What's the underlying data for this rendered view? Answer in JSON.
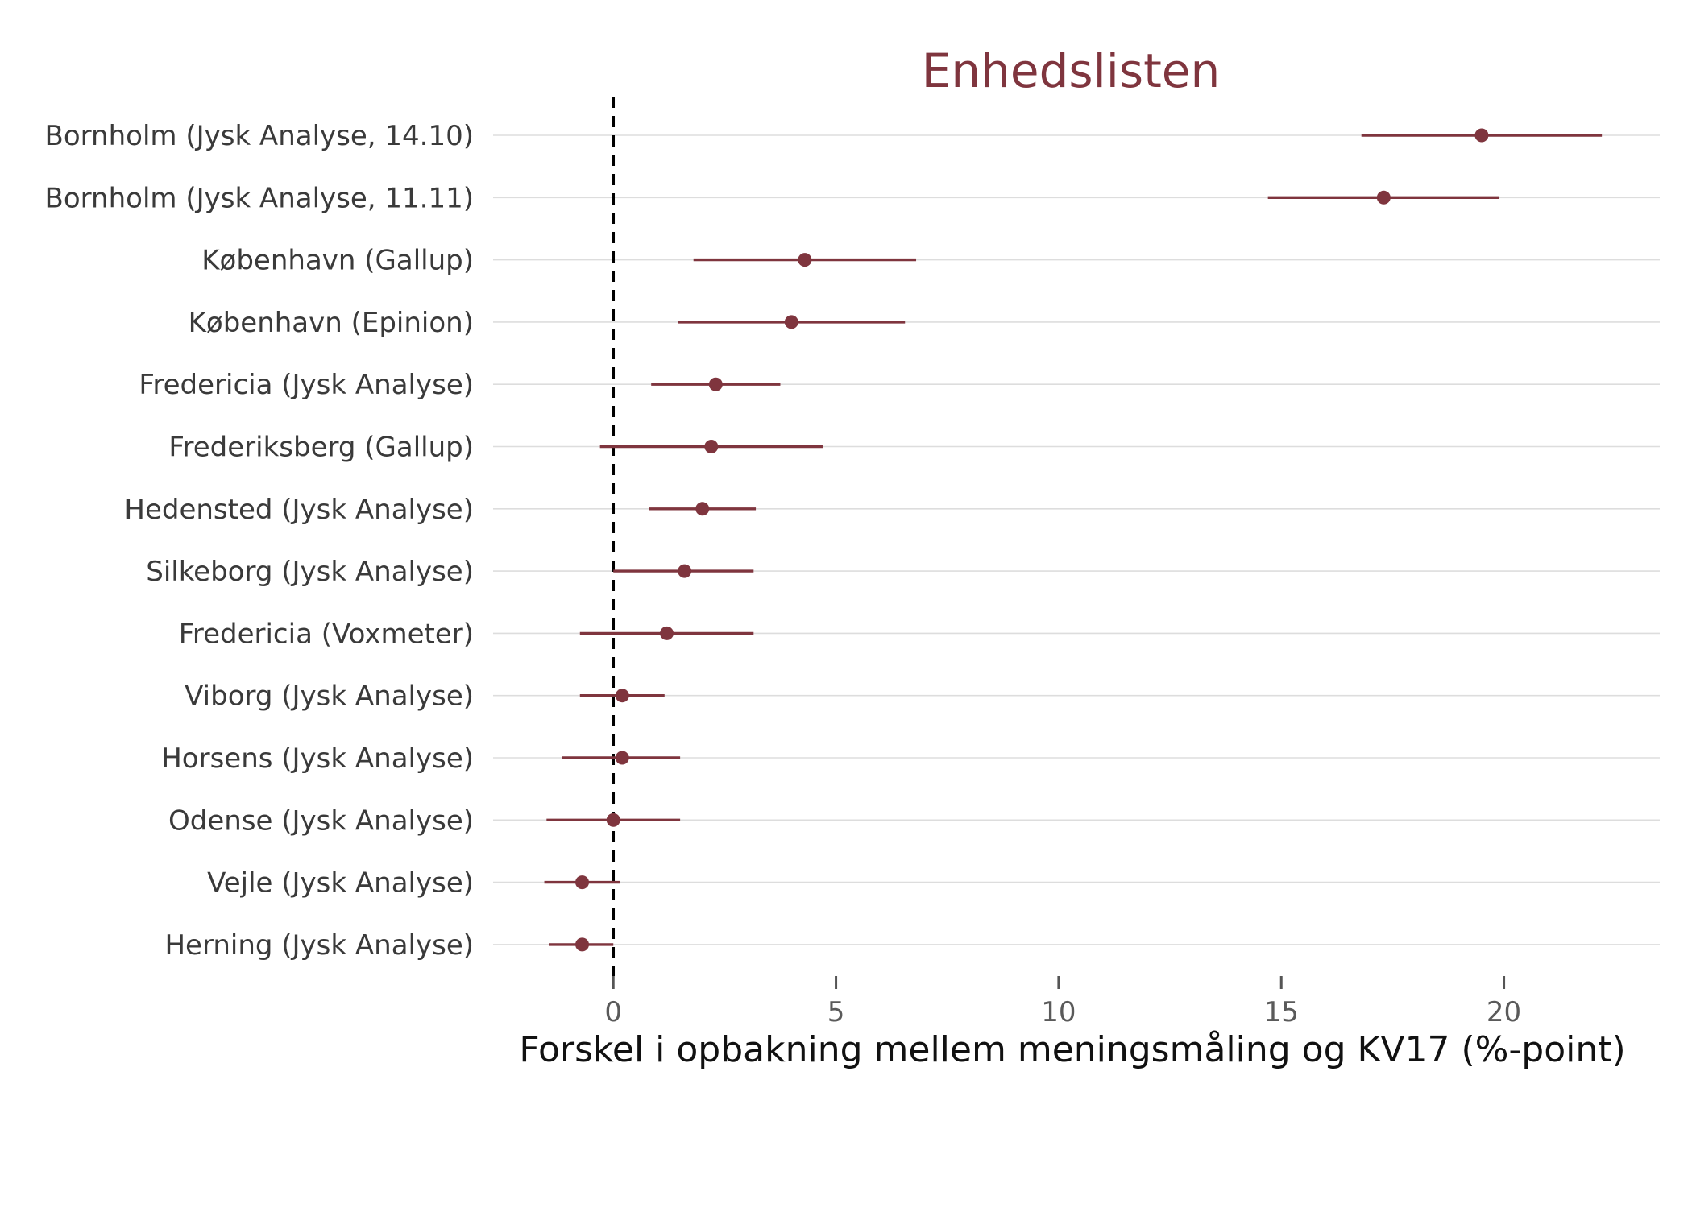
{
  "colors": {
    "accent": "#7f353e",
    "grid": "#dddddd",
    "reference_line": "#000000",
    "tick": "#555555"
  },
  "chart_data": {
    "type": "scatter",
    "subtype": "point-range",
    "title": "Enhedslisten",
    "xlabel": "Forskel i opbakning mellem meningsmåling og KV17 (%-point)",
    "ylabel": "",
    "xlim": [
      -2.7,
      23.5
    ],
    "xticks": [
      0,
      5,
      10,
      15,
      20
    ],
    "reference_x": 0,
    "grid": "horizontal",
    "legend": "none",
    "categories": [
      "Bornholm (Jysk Analyse, 14.10)",
      "Bornholm (Jysk Analyse, 11.11)",
      "København (Gallup)",
      "København (Epinion)",
      "Fredericia (Jysk Analyse)",
      "Frederiksberg (Gallup)",
      "Hedensted (Jysk Analyse)",
      "Silkeborg (Jysk Analyse)",
      "Fredericia (Voxmeter)",
      "Viborg (Jysk Analyse)",
      "Horsens (Jysk Analyse)",
      "Odense (Jysk Analyse)",
      "Vejle (Jysk Analyse)",
      "Herning (Jysk Analyse)"
    ],
    "values": [
      19.5,
      17.3,
      4.3,
      4.0,
      2.3,
      2.2,
      2.0,
      1.6,
      1.2,
      0.2,
      0.2,
      0.0,
      -0.7,
      -0.7
    ],
    "lower": [
      16.8,
      14.7,
      1.8,
      1.45,
      0.85,
      -0.3,
      0.8,
      0.0,
      -0.75,
      -0.75,
      -1.15,
      -1.5,
      -1.55,
      -1.45
    ],
    "upper": [
      22.2,
      19.9,
      6.8,
      6.55,
      3.75,
      4.7,
      3.2,
      3.15,
      3.15,
      1.15,
      1.5,
      1.5,
      0.15,
      0.0
    ]
  }
}
